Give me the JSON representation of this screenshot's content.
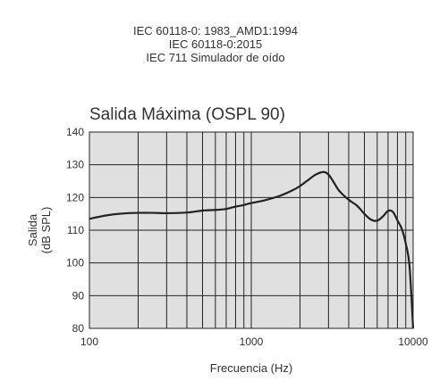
{
  "header": {
    "line1": "IEC 60118-0: 1983_AMD1:1994",
    "line2": "IEC 60118-0:2015",
    "line3": "IEC 711 Simulador de oído"
  },
  "chart_data": {
    "type": "line",
    "title": "Salida Máxima (OSPL 90)",
    "xlabel": "Frecuencia (Hz)",
    "ylabel_line1": "Salida",
    "ylabel_line2": "(dB SPL)",
    "x_scale": "log",
    "xlim": [
      100,
      10000
    ],
    "ylim": [
      80,
      140
    ],
    "grid": true,
    "x_ticks": [
      100,
      1000,
      10000
    ],
    "y_ticks": [
      80,
      90,
      100,
      110,
      120,
      130,
      140
    ],
    "x_grid_lines": [
      100,
      200,
      300,
      400,
      500,
      600,
      700,
      800,
      900,
      1000,
      2000,
      3000,
      4000,
      5000,
      6000,
      7000,
      8000,
      9000,
      10000
    ],
    "series": [
      {
        "color": "#222222",
        "x": [
          100,
          130,
          160,
          200,
          250,
          300,
          400,
          500,
          600,
          700,
          800,
          900,
          1000,
          1200,
          1500,
          1800,
          2000,
          2200,
          2500,
          2800,
          3000,
          3200,
          3500,
          4000,
          4500,
          5000,
          5500,
          6000,
          6500,
          7000,
          7500,
          8000,
          8500,
          9000,
          9500,
          10000
        ],
        "y": [
          113.5,
          114.6,
          115.1,
          115.3,
          115.3,
          115.2,
          115.4,
          116.0,
          116.2,
          116.5,
          117.2,
          117.7,
          118.3,
          119.1,
          120.5,
          122.2,
          123.5,
          125.0,
          127.0,
          127.8,
          127.0,
          125.0,
          122.0,
          119.3,
          117.5,
          115.0,
          113.2,
          112.9,
          114.2,
          115.9,
          115.6,
          113.0,
          110.5,
          106.0,
          99.0,
          80.0
        ]
      }
    ]
  }
}
